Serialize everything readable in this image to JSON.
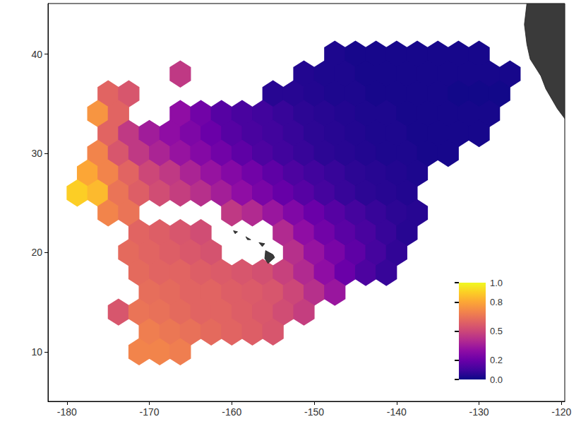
{
  "chart_data": {
    "type": "hexbin",
    "xlim": [
      -182.3,
      -119.6
    ],
    "ylim": [
      5,
      45.1
    ],
    "xticks": [
      -180,
      -170,
      -160,
      -150,
      -140,
      -130,
      -120
    ],
    "yticks": [
      10,
      20,
      30,
      40
    ],
    "grid": false,
    "colorbar_range": [
      0,
      1
    ],
    "colorbar_ticks": [
      {
        "value": 0,
        "label": "0.0"
      },
      0.2,
      0.5,
      0.8,
      {
        "value": 1,
        "label": "1.0"
      }
    ],
    "land": [
      [
        [
          -124.2,
          45.1
        ],
        [
          -119.6,
          45.1
        ],
        [
          -119.6,
          33.5
        ],
        [
          -120.5,
          34.5
        ],
        [
          -121.9,
          36.5
        ],
        [
          -122.5,
          37.8
        ],
        [
          -123.8,
          39.5
        ],
        [
          -124.2,
          41
        ],
        [
          -124.5,
          43
        ]
      ],
      [
        [
          -155.9,
          20.2
        ],
        [
          -155.0,
          19.8
        ],
        [
          -154.8,
          19.5
        ],
        [
          -155.6,
          18.9
        ],
        [
          -156.0,
          19.4
        ]
      ],
      [
        [
          -156.7,
          21.0
        ],
        [
          -156.0,
          20.9
        ],
        [
          -156.3,
          20.6
        ]
      ],
      [
        [
          -158.3,
          21.6
        ],
        [
          -157.7,
          21.3
        ],
        [
          -158.1,
          21.3
        ]
      ],
      [
        [
          -159.8,
          22.2
        ],
        [
          -159.3,
          22.1
        ],
        [
          -159.6,
          21.9
        ]
      ]
    ],
    "cells": [
      [
        -147.5,
        40,
        0.03
      ],
      [
        -145,
        40,
        0.02
      ],
      [
        -142.5,
        40,
        0.02
      ],
      [
        -140,
        40,
        0.02
      ],
      [
        -137.5,
        40,
        0.02
      ],
      [
        -135,
        40,
        0.02
      ],
      [
        -132.5,
        40,
        0.02
      ],
      [
        -130,
        40,
        0.02
      ],
      [
        -166.25,
        38,
        0.45
      ],
      [
        -151.25,
        38,
        0.04
      ],
      [
        -148.75,
        38,
        0.03
      ],
      [
        -146.25,
        38,
        0.03
      ],
      [
        -143.75,
        38,
        0.02
      ],
      [
        -141.25,
        38,
        0.02
      ],
      [
        -138.75,
        38,
        0.02
      ],
      [
        -136.25,
        38,
        0.02
      ],
      [
        -133.75,
        38,
        0.02
      ],
      [
        -131.25,
        38,
        0.02
      ],
      [
        -128.75,
        38,
        0.02
      ],
      [
        -126.25,
        38,
        0.02
      ],
      [
        -175,
        36,
        0.6
      ],
      [
        -172.5,
        36,
        0.55
      ],
      [
        -155,
        36,
        0.05
      ],
      [
        -152.5,
        36,
        0.05
      ],
      [
        -150,
        36,
        0.04
      ],
      [
        -147.5,
        36,
        0.03
      ],
      [
        -145,
        36,
        0.03
      ],
      [
        -142.5,
        36,
        0.02
      ],
      [
        -140,
        36,
        0.02
      ],
      [
        -137.5,
        36,
        0.02
      ],
      [
        -135,
        36,
        0.02
      ],
      [
        -132.5,
        36,
        0.01
      ],
      [
        -130,
        36,
        0.01
      ],
      [
        -127.5,
        36,
        0.01
      ],
      [
        -176.25,
        34,
        0.75
      ],
      [
        -173.75,
        34,
        0.6
      ],
      [
        -166.25,
        34,
        0.3
      ],
      [
        -163.75,
        34,
        0.22
      ],
      [
        -161.25,
        34,
        0.15
      ],
      [
        -158.75,
        34,
        0.12
      ],
      [
        -156.25,
        34,
        0.1
      ],
      [
        -153.75,
        34,
        0.08
      ],
      [
        -151.25,
        34,
        0.06
      ],
      [
        -148.75,
        34,
        0.05
      ],
      [
        -146.25,
        34,
        0.04
      ],
      [
        -143.75,
        34,
        0.03
      ],
      [
        -141.25,
        34,
        0.03
      ],
      [
        -138.75,
        34,
        0.02
      ],
      [
        -136.25,
        34,
        0.02
      ],
      [
        -133.75,
        34,
        0.02
      ],
      [
        -131.25,
        34,
        0.02
      ],
      [
        -128.75,
        34,
        0.02
      ],
      [
        -175,
        32,
        0.6
      ],
      [
        -172.5,
        32,
        0.45
      ],
      [
        -170,
        32,
        0.35
      ],
      [
        -167.5,
        32,
        0.3
      ],
      [
        -165,
        32,
        0.25
      ],
      [
        -162.5,
        32,
        0.2
      ],
      [
        -160,
        32,
        0.15
      ],
      [
        -157.5,
        32,
        0.12
      ],
      [
        -155,
        32,
        0.1
      ],
      [
        -152.5,
        32,
        0.08
      ],
      [
        -150,
        32,
        0.06
      ],
      [
        -147.5,
        32,
        0.05
      ],
      [
        -145,
        32,
        0.04
      ],
      [
        -142.5,
        32,
        0.03
      ],
      [
        -140,
        32,
        0.03
      ],
      [
        -137.5,
        32,
        0.02
      ],
      [
        -135,
        32,
        0.02
      ],
      [
        -132.5,
        32,
        0.02
      ],
      [
        -130,
        32,
        0.02
      ],
      [
        -176.25,
        30,
        0.7
      ],
      [
        -173.75,
        30,
        0.55
      ],
      [
        -171.25,
        30,
        0.45
      ],
      [
        -168.75,
        30,
        0.38
      ],
      [
        -166.25,
        30,
        0.32
      ],
      [
        -163.75,
        30,
        0.27
      ],
      [
        -161.25,
        30,
        0.22
      ],
      [
        -158.75,
        30,
        0.17
      ],
      [
        -156.25,
        30,
        0.13
      ],
      [
        -153.75,
        30,
        0.1
      ],
      [
        -151.25,
        30,
        0.08
      ],
      [
        -148.75,
        30,
        0.06
      ],
      [
        -146.25,
        30,
        0.05
      ],
      [
        -143.75,
        30,
        0.04
      ],
      [
        -141.25,
        30,
        0.03
      ],
      [
        -138.75,
        30,
        0.03
      ],
      [
        -136.25,
        30,
        0.02
      ],
      [
        -133.75,
        30,
        0.02
      ],
      [
        -177.5,
        28,
        0.8
      ],
      [
        -175,
        28,
        0.7
      ],
      [
        -172.5,
        28,
        0.6
      ],
      [
        -170,
        28,
        0.5
      ],
      [
        -167.5,
        28,
        0.45
      ],
      [
        -165,
        28,
        0.38
      ],
      [
        -162.5,
        28,
        0.32
      ],
      [
        -160,
        28,
        0.27
      ],
      [
        -157.5,
        28,
        0.22
      ],
      [
        -155,
        28,
        0.17
      ],
      [
        -152.5,
        28,
        0.13
      ],
      [
        -150,
        28,
        0.1
      ],
      [
        -147.5,
        28,
        0.08
      ],
      [
        -145,
        28,
        0.06
      ],
      [
        -142.5,
        28,
        0.05
      ],
      [
        -140,
        28,
        0.04
      ],
      [
        -137.5,
        28,
        0.03
      ],
      [
        -178.75,
        26,
        0.9
      ],
      [
        -176.25,
        26,
        0.85
      ],
      [
        -173.75,
        26,
        0.65
      ],
      [
        -171.25,
        26,
        0.58
      ],
      [
        -168.75,
        26,
        0.52
      ],
      [
        -166.25,
        26,
        0.47
      ],
      [
        -163.75,
        26,
        0.42
      ],
      [
        -161.25,
        26,
        0.36
      ],
      [
        -158.75,
        26,
        0.3
      ],
      [
        -156.25,
        26,
        0.24
      ],
      [
        -153.75,
        26,
        0.19
      ],
      [
        -151.25,
        26,
        0.15
      ],
      [
        -148.75,
        26,
        0.11
      ],
      [
        -146.25,
        26,
        0.08
      ],
      [
        -143.75,
        26,
        0.06
      ],
      [
        -141.25,
        26,
        0.05
      ],
      [
        -138.75,
        26,
        0.04
      ],
      [
        -175,
        24,
        0.7
      ],
      [
        -172.5,
        24,
        0.65
      ],
      [
        -160,
        24,
        0.45
      ],
      [
        -157.5,
        24,
        0.4
      ],
      [
        -155,
        24,
        0.33
      ],
      [
        -152.5,
        24,
        0.26
      ],
      [
        -150,
        24,
        0.2
      ],
      [
        -147.5,
        24,
        0.15
      ],
      [
        -145,
        24,
        0.11
      ],
      [
        -142.5,
        24,
        0.08
      ],
      [
        -140,
        24,
        0.06
      ],
      [
        -137.5,
        24,
        0.05
      ],
      [
        -171.25,
        22,
        0.6
      ],
      [
        -168.75,
        22,
        0.58
      ],
      [
        -166.25,
        22,
        0.55
      ],
      [
        -163.75,
        22,
        0.52
      ],
      [
        -153.75,
        22,
        0.4
      ],
      [
        -151.25,
        22,
        0.3
      ],
      [
        -148.75,
        22,
        0.22
      ],
      [
        -146.25,
        22,
        0.16
      ],
      [
        -143.75,
        22,
        0.12
      ],
      [
        -141.25,
        22,
        0.08
      ],
      [
        -138.75,
        22,
        0.05
      ],
      [
        -172.5,
        20,
        0.62
      ],
      [
        -170,
        20,
        0.6
      ],
      [
        -167.5,
        20,
        0.58
      ],
      [
        -165,
        20,
        0.56
      ],
      [
        -162.5,
        20,
        0.54
      ],
      [
        -152.5,
        20,
        0.42
      ],
      [
        -150,
        20,
        0.32
      ],
      [
        -147.5,
        20,
        0.24
      ],
      [
        -145,
        20,
        0.17
      ],
      [
        -142.5,
        20,
        0.11
      ],
      [
        -140,
        20,
        0.07
      ],
      [
        -171.25,
        18,
        0.62
      ],
      [
        -168.75,
        18,
        0.6
      ],
      [
        -166.25,
        18,
        0.6
      ],
      [
        -163.75,
        18,
        0.58
      ],
      [
        -161.25,
        18,
        0.57
      ],
      [
        -158.75,
        18,
        0.55
      ],
      [
        -156.25,
        18,
        0.53
      ],
      [
        -153.75,
        18,
        0.48
      ],
      [
        -151.25,
        18,
        0.4
      ],
      [
        -148.75,
        18,
        0.3
      ],
      [
        -146.25,
        18,
        0.2
      ],
      [
        -143.75,
        18,
        0.13
      ],
      [
        -141.25,
        18,
        0.08
      ],
      [
        -170,
        16,
        0.63
      ],
      [
        -167.5,
        16,
        0.62
      ],
      [
        -165,
        16,
        0.6
      ],
      [
        -162.5,
        16,
        0.6
      ],
      [
        -160,
        16,
        0.58
      ],
      [
        -157.5,
        16,
        0.57
      ],
      [
        -155,
        16,
        0.55
      ],
      [
        -152.5,
        16,
        0.5
      ],
      [
        -150,
        16,
        0.42
      ],
      [
        -147.5,
        16,
        0.33
      ],
      [
        -173.75,
        14,
        0.55
      ],
      [
        -171.25,
        14,
        0.65
      ],
      [
        -168.75,
        14,
        0.64
      ],
      [
        -166.25,
        14,
        0.62
      ],
      [
        -163.75,
        14,
        0.6
      ],
      [
        -161.25,
        14,
        0.6
      ],
      [
        -158.75,
        14,
        0.58
      ],
      [
        -156.25,
        14,
        0.56
      ],
      [
        -153.75,
        14,
        0.52
      ],
      [
        -151.25,
        14,
        0.47
      ],
      [
        -170,
        12,
        0.68
      ],
      [
        -167.5,
        12,
        0.66
      ],
      [
        -165,
        12,
        0.64
      ],
      [
        -162.5,
        12,
        0.62
      ],
      [
        -160,
        12,
        0.6
      ],
      [
        -157.5,
        12,
        0.58
      ],
      [
        -155,
        12,
        0.55
      ],
      [
        -171.25,
        10,
        0.7
      ],
      [
        -168.75,
        10,
        0.7
      ],
      [
        -166.25,
        10,
        0.68
      ]
    ]
  }
}
